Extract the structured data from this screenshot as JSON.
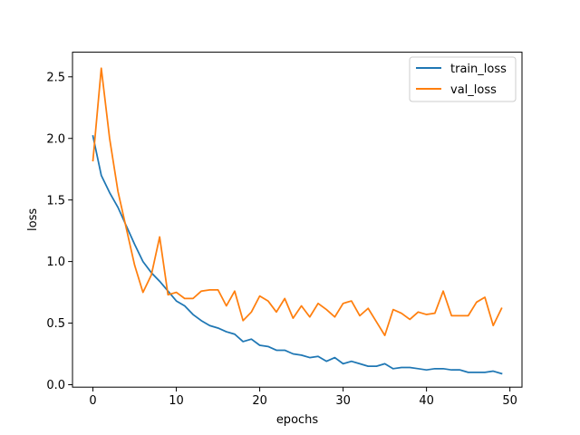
{
  "chart_data": {
    "type": "line",
    "title": "",
    "xlabel": "epochs",
    "ylabel": "loss",
    "xlim": [
      -2.45,
      51.45
    ],
    "ylim": [
      -0.02,
      2.7
    ],
    "xticks": [
      0,
      10,
      20,
      30,
      40,
      50
    ],
    "xtick_labels": [
      "0",
      "10",
      "20",
      "30",
      "40",
      "50"
    ],
    "yticks": [
      0.0,
      0.5,
      1.0,
      1.5,
      2.0,
      2.5
    ],
    "ytick_labels": [
      "0.0",
      "0.5",
      "1.0",
      "1.5",
      "2.0",
      "2.5"
    ],
    "grid": false,
    "legend": "top-right",
    "x": [
      0,
      1,
      2,
      3,
      4,
      5,
      6,
      7,
      8,
      9,
      10,
      11,
      12,
      13,
      14,
      15,
      16,
      17,
      18,
      19,
      20,
      21,
      22,
      23,
      24,
      25,
      26,
      27,
      28,
      29,
      30,
      31,
      32,
      33,
      34,
      35,
      36,
      37,
      38,
      39,
      40,
      41,
      42,
      43,
      44,
      45,
      46,
      47,
      48,
      49
    ],
    "series": [
      {
        "name": "train_loss",
        "color": "#1f77b4",
        "values": [
          2.02,
          1.7,
          1.56,
          1.44,
          1.29,
          1.14,
          1.0,
          0.91,
          0.84,
          0.76,
          0.68,
          0.64,
          0.57,
          0.52,
          0.48,
          0.46,
          0.43,
          0.41,
          0.35,
          0.37,
          0.32,
          0.31,
          0.28,
          0.28,
          0.25,
          0.24,
          0.22,
          0.23,
          0.19,
          0.22,
          0.17,
          0.19,
          0.17,
          0.15,
          0.15,
          0.17,
          0.13,
          0.14,
          0.14,
          0.13,
          0.12,
          0.13,
          0.13,
          0.12,
          0.12,
          0.1,
          0.1,
          0.1,
          0.11,
          0.09
        ]
      },
      {
        "name": "val_loss",
        "color": "#ff7f0e",
        "values": [
          1.82,
          2.57,
          2.0,
          1.57,
          1.27,
          0.97,
          0.75,
          0.89,
          1.2,
          0.73,
          0.75,
          0.7,
          0.7,
          0.76,
          0.77,
          0.77,
          0.64,
          0.76,
          0.52,
          0.59,
          0.72,
          0.68,
          0.59,
          0.7,
          0.54,
          0.64,
          0.55,
          0.66,
          0.61,
          0.55,
          0.66,
          0.68,
          0.56,
          0.62,
          0.51,
          0.4,
          0.61,
          0.58,
          0.53,
          0.59,
          0.57,
          0.58,
          0.76,
          0.56,
          0.56,
          0.56,
          0.67,
          0.71,
          0.48,
          0.62
        ]
      }
    ]
  }
}
